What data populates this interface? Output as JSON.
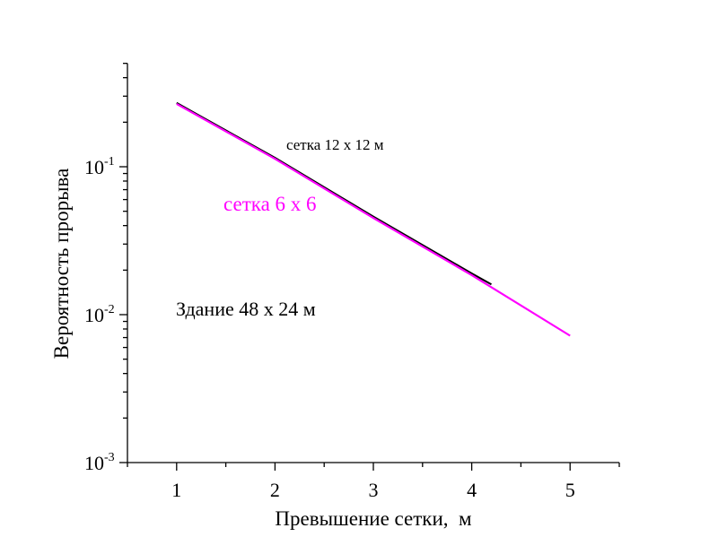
{
  "chart_data": {
    "type": "line",
    "title": "",
    "xlabel": "Превышение сетки,  м",
    "ylabel": "Вероятность прорыва",
    "xscale": "linear",
    "yscale": "log",
    "xlim": [
      0.5,
      5.5
    ],
    "ylim": [
      0.001,
      0.5
    ],
    "x_ticks": [
      1,
      2,
      3,
      4,
      5
    ],
    "x_tick_labels": [
      "1",
      "2",
      "3",
      "4",
      "5"
    ],
    "y_ticks": [
      0.1,
      0.01,
      0.001
    ],
    "y_tick_labels": [
      {
        "base": "10",
        "exp": "-1"
      },
      {
        "base": "10",
        "exp": "-2"
      },
      {
        "base": "10",
        "exp": "-3"
      }
    ],
    "grid": false,
    "series": [
      {
        "name": "сетка 12 x 12 м",
        "color": "#000000",
        "x": [
          1,
          2,
          3,
          4,
          4.2
        ],
        "values": [
          0.27,
          0.115,
          0.046,
          0.019,
          0.016
        ]
      },
      {
        "name": "сетка 6 x 6",
        "color": "#ff00ff",
        "x": [
          1,
          2,
          3,
          4,
          5
        ],
        "values": [
          0.266,
          0.113,
          0.045,
          0.0185,
          0.0072
        ]
      }
    ],
    "annotations": [
      {
        "text": "сетка 12 x 12 м",
        "color": "#000000"
      },
      {
        "text": "сетка 6 x 6",
        "color": "#ff00ff"
      },
      {
        "text": "Здание 48 x 24 м",
        "color": "#000000"
      }
    ]
  }
}
